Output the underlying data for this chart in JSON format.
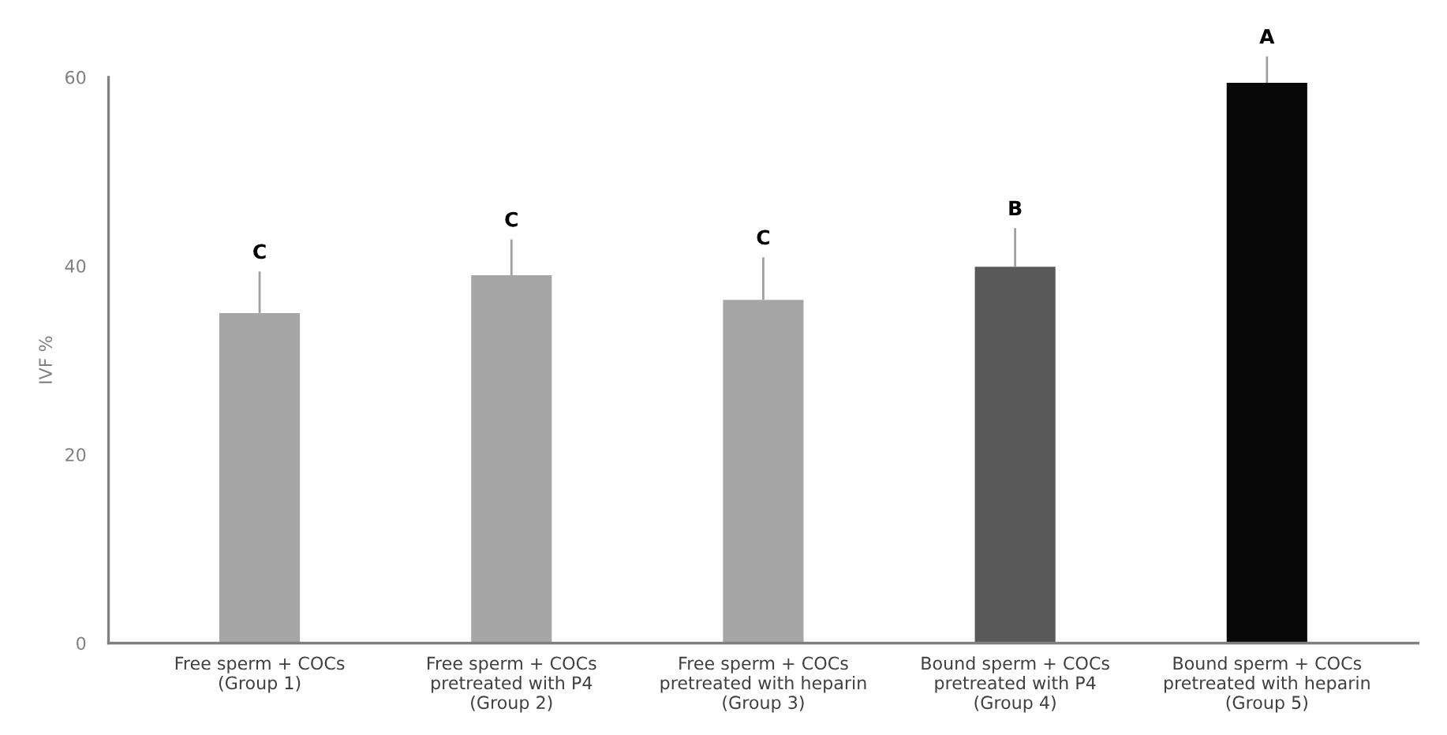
{
  "chart_data": {
    "type": "bar",
    "ylabel": "IVF %",
    "categories": [
      "Free sperm + COCs\n(Group 1)",
      "Free sperm + COCs\npretreated with P4\n(Group 2)",
      "Free sperm + COCs\npretreated with heparin\n(Group 3)",
      "Bound sperm + COCs\npretreated with P4\n(Group 4)",
      "Bound sperm + COCs\npretreated with heparin\n(Group 5)"
    ],
    "values": [
      35,
      39,
      36.4,
      39.9,
      59.4
    ],
    "colors": [
      "#a6a6a6",
      "#a6a6a6",
      "#a6a6a6",
      "#595959",
      "#080808"
    ],
    "errors": [
      [
        35,
        39.4
      ],
      [
        39,
        42.8
      ],
      [
        36.4,
        40.9
      ],
      [
        39.9,
        44.0
      ],
      [
        59.4,
        62.2
      ]
    ],
    "ylim": [
      0,
      60
    ],
    "yticks": [
      0,
      20,
      40,
      60
    ],
    "grid": false,
    "legend": false,
    "annotations": [
      {
        "text": "C",
        "x": "Free sperm + COCs\n(Group 1)",
        "y": 39.4
      },
      {
        "text": "C",
        "x": "Free sperm + COCs\npretreated with P4\n(Group 2)",
        "y": 42.8
      },
      {
        "text": "C",
        "x": "Free sperm + COCs\npretreated with heparin\n(Group 3)",
        "y": 40.9
      },
      {
        "text": "B",
        "x": "Bound sperm + COCs\npretreated with P4\n(Group 4)",
        "y": 44.0
      },
      {
        "text": "A",
        "x": "Bound sperm + COCs\npretreated with heparin\n(Group 5)",
        "y": 62.2
      }
    ]
  }
}
